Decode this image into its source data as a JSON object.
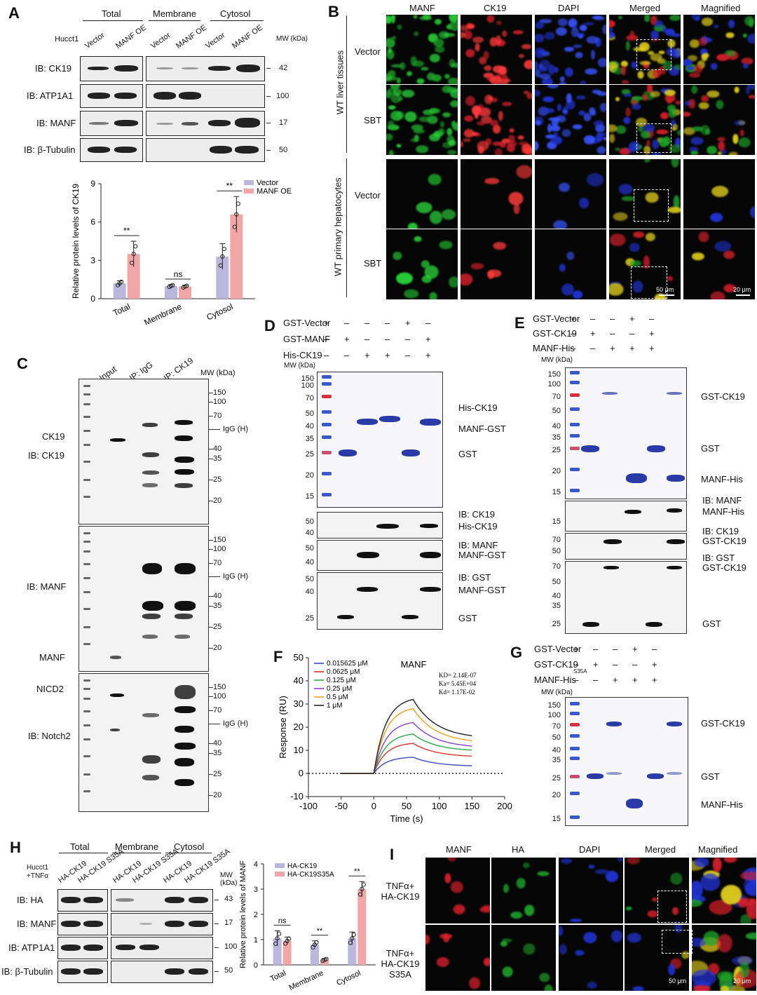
{
  "panels": {
    "A": "A",
    "B": "B",
    "C": "C",
    "D": "D",
    "E": "E",
    "F": "F",
    "G": "G",
    "H": "H",
    "I": "I"
  },
  "A": {
    "cell": "Hucct1",
    "groups": [
      "Total",
      "Membrane",
      "Cytosol"
    ],
    "lanes": [
      "Vector",
      "MANF OE",
      "Vector",
      "MANF OE",
      "Vector",
      "MANF OE"
    ],
    "mw_header": "MW (kDa)",
    "blots": [
      {
        "label": "IB: CK19",
        "mw": "42"
      },
      {
        "label": "IB: ATP1A1",
        "mw": "100"
      },
      {
        "label": "IB: MANF",
        "mw": "17"
      },
      {
        "label": "IB: β-Tubulin",
        "mw": "50"
      }
    ]
  },
  "A_chart": {
    "chart_data": {
      "type": "bar",
      "categories": [
        "Total",
        "Membrane",
        "Cytosol"
      ],
      "series": [
        {
          "name": "Vector",
          "values": [
            1.2,
            1.0,
            3.3
          ],
          "error": [
            0.2,
            0.1,
            1.0
          ]
        },
        {
          "name": "MANF OE",
          "values": [
            3.5,
            0.95,
            6.6
          ],
          "error": [
            1.0,
            0.1,
            1.4
          ]
        }
      ],
      "ylabel": "Relative protein levels of CK19",
      "yticks": [
        "0",
        "3",
        "6",
        "9"
      ],
      "ylim": [
        0,
        9
      ],
      "significance": [
        "**",
        "ns",
        "**"
      ],
      "colors": {
        "Vector": "#b9b7dc",
        "MANF OE": "#f0a6a6"
      }
    }
  },
  "B": {
    "cols": [
      "MANF",
      "CK19",
      "DAPI",
      "Merged",
      "Magnified"
    ],
    "rows": [
      "Vector",
      "SBT",
      "Vector",
      "SBT"
    ],
    "sections": [
      "WT liver tissues",
      "WT primary hepatocytes"
    ],
    "scale1": "50 μm",
    "scale2": "20 μm"
  },
  "C": {
    "lanes": [
      "Input",
      "IP: IgG",
      "IP: CK19"
    ],
    "mw_header": "MW (kDa)",
    "blot1": {
      "labels": [
        "CK19",
        "IB: CK19"
      ],
      "mw": [
        "150",
        "100",
        "70",
        "IgG (H)",
        "40",
        "35",
        "25",
        "20"
      ]
    },
    "blot2": {
      "labels": [
        "IB: MANF",
        "MANF"
      ],
      "mw": [
        "150",
        "100",
        "70",
        "IgG (H)",
        "40",
        "35",
        "25",
        "20"
      ]
    },
    "blot3": {
      "labels": [
        "NICD2",
        "IB: Notch2"
      ],
      "mw": [
        "150",
        "100",
        "70",
        "IgG (H)",
        "40",
        "35",
        "25",
        "20"
      ]
    }
  },
  "D": {
    "rows": [
      {
        "label": "GST-Vector",
        "v": [
          "+",
          "–",
          "–",
          "–",
          "+",
          "–"
        ]
      },
      {
        "label": "GST-MANF",
        "v": [
          "–",
          "+",
          "–",
          "–",
          "–",
          "+"
        ]
      },
      {
        "label": "His-CK19",
        "v": [
          "–",
          "–",
          "+",
          "+",
          "–",
          "+"
        ]
      }
    ],
    "mw_header": "MW (kDa)",
    "gel_mw": [
      "150",
      "100",
      "70",
      "50",
      "40",
      "35",
      "25",
      "20",
      "15"
    ],
    "gel_labels": [
      "His-CK19",
      "MANF-GST",
      "GST"
    ],
    "wb1": {
      "mw": [
        "50",
        "40"
      ],
      "labels": [
        "IB: CK19",
        "His-CK19"
      ]
    },
    "wb2": {
      "mw": [
        "50",
        "40"
      ],
      "labels": [
        "IB: MANF",
        "MANF-GST"
      ]
    },
    "wb3": {
      "mw": [
        "50",
        "40",
        "25"
      ],
      "labels": [
        "IB: GST",
        "MANF-GST",
        "GST"
      ]
    }
  },
  "E": {
    "rows": [
      {
        "label": "GST-Vector",
        "v": [
          "+",
          "–",
          "–",
          "+",
          "–"
        ]
      },
      {
        "label": "GST-CK19",
        "v": [
          "–",
          "+",
          "–",
          "–",
          "+"
        ]
      },
      {
        "label": "MANF-His",
        "v": [
          "–",
          "–",
          "+",
          "+",
          "+"
        ]
      }
    ],
    "mw_header": "MW (kDa)",
    "gel_mw": [
      "150",
      "100",
      "70",
      "50",
      "40",
      "35",
      "25",
      "20",
      "15"
    ],
    "gel_labels": [
      "GST-CK19",
      "GST",
      "MANF-His"
    ],
    "wb1": {
      "mw": [
        "15"
      ],
      "labels": [
        "IB: MANF",
        "MANF-His"
      ]
    },
    "wb2": {
      "mw": [
        "70",
        "50"
      ],
      "labels": [
        "IB: CK19",
        "GST-CK19"
      ]
    },
    "wb3": {
      "mw": [
        "70",
        "50",
        "40",
        "35",
        "25"
      ],
      "labels": [
        "IB: GST",
        "GST-CK19",
        "GST"
      ]
    }
  },
  "F": {
    "title": "MANF",
    "chart_data": {
      "type": "line",
      "xlabel": "Time (s)",
      "ylabel": "Response (RU)",
      "xlim": [
        -100,
        200
      ],
      "ylim": [
        -10,
        50
      ],
      "xticks": [
        "-100",
        "-50",
        "0",
        "50",
        "100",
        "150",
        "200"
      ],
      "yticks": [
        "-10",
        "0",
        "10",
        "20",
        "30",
        "40",
        "50"
      ],
      "series": [
        {
          "name": "0.015625 μM",
          "color": "#3a4cc0",
          "peak": 7,
          "end": 3
        },
        {
          "name": "0.0625 μM",
          "color": "#d9342b",
          "peak": 13,
          "end": 7
        },
        {
          "name": "0.125 μM",
          "color": "#2aa84a",
          "peak": 17,
          "end": 9.5
        },
        {
          "name": "0.25 μM",
          "color": "#8a3fc6",
          "peak": 22,
          "end": 11
        },
        {
          "name": "0.5 μM",
          "color": "#f0a020",
          "peak": 28,
          "end": 13
        },
        {
          "name": "1 μM",
          "color": "#222222",
          "peak": 32,
          "end": 15
        }
      ],
      "annotations": [
        "KD= 2.14E-07",
        "Ka= 5.45E+04",
        "Kd= 1.17E-02"
      ]
    }
  },
  "G": {
    "rows": [
      {
        "label": "GST-Vector",
        "v": [
          "+",
          "–",
          "–",
          "+",
          "–"
        ]
      },
      {
        "label": "GST-CK19",
        "sub": "S35A",
        "v": [
          "–",
          "+",
          "–",
          "–",
          "+"
        ]
      },
      {
        "label": "MANF-His",
        "v": [
          "–",
          "–",
          "+",
          "+",
          "+"
        ]
      }
    ],
    "mw_header": "MW (kDa)",
    "gel_mw": [
      "150",
      "100",
      "70",
      "50",
      "40",
      "35",
      "25",
      "20",
      "15"
    ],
    "gel_labels": [
      "GST-CK19",
      "GST",
      "MANF-His"
    ]
  },
  "H": {
    "cell": "Hucct1 +TNFα",
    "groups": [
      "Total",
      "Membrane",
      "Cytosol"
    ],
    "lanes": [
      "HA-CK19",
      "HA-CK19 S35A",
      "HA-CK19",
      "HA-CK19 S35A",
      "HA-CK19",
      "HA-CK19 S35A"
    ],
    "mw_header": "MW (kDa)",
    "blots": [
      {
        "label": "IB: HA",
        "mw": "43"
      },
      {
        "label": "IB: MANF",
        "mw": "17"
      },
      {
        "label": "IB: ATP1A1",
        "mw": "100"
      },
      {
        "label": "IB: β-Tubulin",
        "mw": "50"
      }
    ]
  },
  "H_chart": {
    "chart_data": {
      "type": "bar",
      "categories": [
        "Total",
        "Membrane",
        "Cytosol"
      ],
      "series": [
        {
          "name": "HA-CK19",
          "values": [
            1.05,
            0.8,
            1.05
          ],
          "error": [
            0.3,
            0.15,
            0.25
          ]
        },
        {
          "name": "HA-CK19S35A",
          "values": [
            0.95,
            0.2,
            3.0
          ],
          "error": [
            0.15,
            0.05,
            0.3
          ]
        }
      ],
      "ylabel": "Relative protein levels of MANF",
      "yticks": [
        "0",
        "1",
        "2",
        "3",
        "4"
      ],
      "ylim": [
        0,
        4
      ],
      "significance": [
        "ns",
        "**",
        "**"
      ],
      "colors": {
        "HA-CK19": "#b9b7dc",
        "HA-CK19S35A": "#f0a6a6"
      }
    }
  },
  "I": {
    "cols": [
      "MANF",
      "HA",
      "DAPI",
      "Merged",
      "Magnified"
    ],
    "rows": [
      "TNFα+ HA-CK19",
      "TNFα+ HA-CK19 S35A"
    ],
    "scale1": "50 μm",
    "scale2": "20 μm"
  }
}
